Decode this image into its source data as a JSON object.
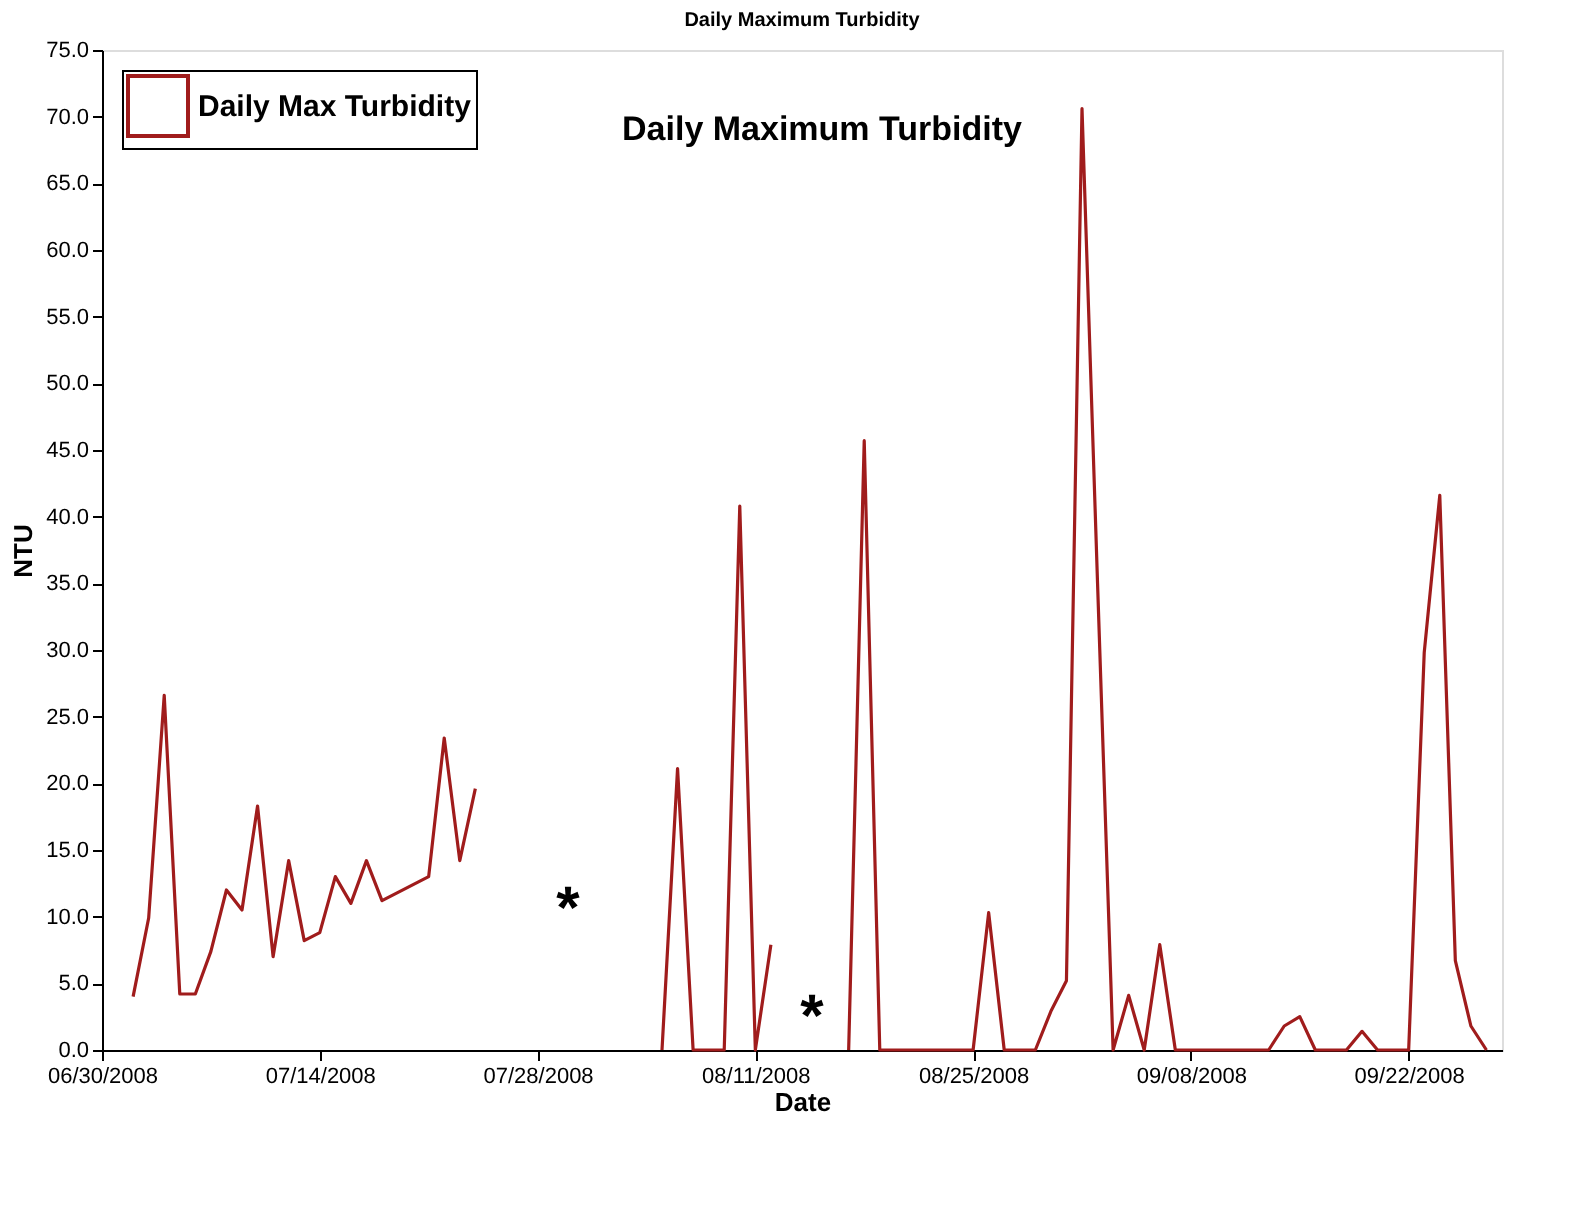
{
  "chart_data": {
    "type": "line",
    "title": "Daily Maximum Turbidity",
    "subtitle": "Daily Maximum Turbidity",
    "xlabel": "Date",
    "ylabel": "NTU",
    "x": [
      "2008-07-02",
      "2008-07-03",
      "2008-07-04",
      "2008-07-05",
      "2008-07-06",
      "2008-07-07",
      "2008-07-08",
      "2008-07-09",
      "2008-07-10",
      "2008-07-11",
      "2008-07-12",
      "2008-07-13",
      "2008-07-14",
      "2008-07-15",
      "2008-07-16",
      "2008-07-17",
      "2008-07-18",
      "2008-07-19",
      "2008-07-20",
      "2008-07-21",
      "2008-07-22",
      "2008-07-23",
      "2008-07-24",
      "2008-07-25",
      "2008-07-26",
      "2008-07-27",
      "2008-07-28",
      "2008-07-29",
      "2008-07-30",
      "2008-07-31",
      "2008-08-01",
      "2008-08-02",
      "2008-08-03",
      "2008-08-04",
      "2008-08-05",
      "2008-08-06",
      "2008-08-07",
      "2008-08-08",
      "2008-08-09",
      "2008-08-10",
      "2008-08-11",
      "2008-08-12",
      "2008-08-13",
      "2008-08-14",
      "2008-08-15",
      "2008-08-16",
      "2008-08-17",
      "2008-08-18",
      "2008-08-19",
      "2008-08-20",
      "2008-08-21",
      "2008-08-22",
      "2008-08-23",
      "2008-08-24",
      "2008-08-25",
      "2008-08-26",
      "2008-08-27",
      "2008-08-28",
      "2008-08-29",
      "2008-08-30",
      "2008-08-31",
      "2008-09-01",
      "2008-09-02",
      "2008-09-03",
      "2008-09-04",
      "2008-09-05",
      "2008-09-06",
      "2008-09-07",
      "2008-09-08",
      "2008-09-09",
      "2008-09-10",
      "2008-09-11",
      "2008-09-12",
      "2008-09-13",
      "2008-09-14",
      "2008-09-15",
      "2008-09-16",
      "2008-09-17",
      "2008-09-18",
      "2008-09-19",
      "2008-09-20",
      "2008-09-21",
      "2008-09-22",
      "2008-09-23",
      "2008-09-24",
      "2008-09-25",
      "2008-09-26",
      "2008-09-27"
    ],
    "series": [
      {
        "name": "Daily Max Turbidity",
        "color": "#a01c1c",
        "values": [
          4.0,
          9.9,
          26.6,
          4.2,
          4.2,
          7.4,
          12.0,
          10.5,
          18.3,
          7.0,
          14.2,
          8.2,
          8.8,
          13.0,
          11.0,
          14.2,
          11.2,
          11.8,
          12.4,
          13.0,
          23.4,
          14.2,
          19.6,
          null,
          null,
          null,
          null,
          null,
          null,
          null,
          null,
          null,
          null,
          null,
          0,
          21.1,
          0,
          0,
          0,
          40.8,
          0,
          7.9,
          null,
          null,
          null,
          null,
          0,
          45.7,
          0,
          0,
          0,
          0,
          0,
          0,
          0,
          10.3,
          0,
          0,
          0,
          2.9,
          5.2,
          70.6,
          35.0,
          0,
          4.1,
          0,
          7.9,
          0,
          0,
          0,
          0,
          0,
          0,
          0,
          1.8,
          2.5,
          0,
          0,
          0,
          1.4,
          0,
          0,
          0,
          29.8,
          41.6,
          6.7,
          1.8,
          0
        ]
      }
    ],
    "xlim": [
      "2008-06-30",
      "2008-09-28"
    ],
    "xticks": [
      {
        "value": "2008-06-30",
        "label": "06/30/2008"
      },
      {
        "value": "2008-07-14",
        "label": "07/14/2008"
      },
      {
        "value": "2008-07-28",
        "label": "07/28/2008"
      },
      {
        "value": "2008-08-11",
        "label": "08/11/2008"
      },
      {
        "value": "2008-08-25",
        "label": "08/25/2008"
      },
      {
        "value": "2008-09-08",
        "label": "09/08/2008"
      },
      {
        "value": "2008-09-22",
        "label": "09/22/2008"
      }
    ],
    "ylim": [
      0,
      75
    ],
    "yticks": [
      {
        "value": 0,
        "label": "0.0"
      },
      {
        "value": 5,
        "label": "5.0"
      },
      {
        "value": 10,
        "label": "10.0"
      },
      {
        "value": 15,
        "label": "15.0"
      },
      {
        "value": 20,
        "label": "20.0"
      },
      {
        "value": 25,
        "label": "25.0"
      },
      {
        "value": 30,
        "label": "30.0"
      },
      {
        "value": 35,
        "label": "35.0"
      },
      {
        "value": 40,
        "label": "40.0"
      },
      {
        "value": 45,
        "label": "45.0"
      },
      {
        "value": 50,
        "label": "50.0"
      },
      {
        "value": 55,
        "label": "55.0"
      },
      {
        "value": 60,
        "label": "60.0"
      },
      {
        "value": 65,
        "label": "65.0"
      },
      {
        "value": 70,
        "label": "70.0"
      },
      {
        "value": 75,
        "label": "75.0"
      }
    ],
    "annotations": [
      "*",
      "*"
    ],
    "legend": "top left",
    "grid": false,
    "marker": "none",
    "line_style": "solid"
  }
}
